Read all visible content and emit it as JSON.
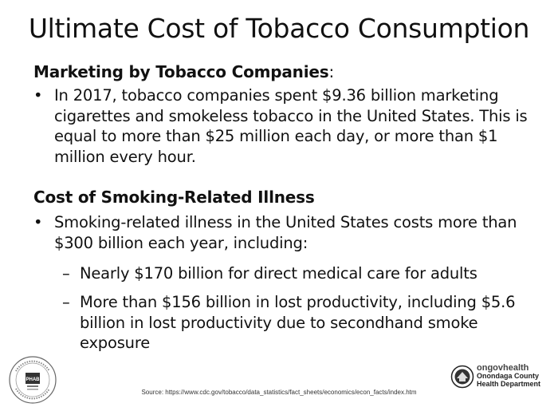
{
  "title": "Ultimate Cost of Tobacco Consumption",
  "section1": {
    "heading": "Marketing by Tobacco Companies",
    "colon": ":",
    "bullet": "In 2017, tobacco companies spent $9.36 billion marketing cigarettes and smokeless tobacco in the United States. This is equal to more than $25 million each day, or more than $1 million every hour."
  },
  "section2": {
    "heading": "Cost of Smoking-Related Illness",
    "bullet": "Smoking-related illness in the United States costs more than $300 billion each year, including:",
    "subitems": [
      "Nearly $170 billion for direct medical care for adults",
      "More than $156 billion in lost productivity, including $5.6 billion in lost productivity due to secondhand smoke exposure"
    ]
  },
  "bullet_glyph": "•",
  "dash_glyph": "–",
  "logos": {
    "left_seal_text": "PHAB",
    "right_org_line1": "ongovhealth",
    "right_org_line2": "Onondaga County",
    "right_org_line3": "Health Department"
  },
  "source": "Source: https://www.cdc.gov/tobacco/data_statistics/fact_sheets/economics/econ_facts/index.htm"
}
